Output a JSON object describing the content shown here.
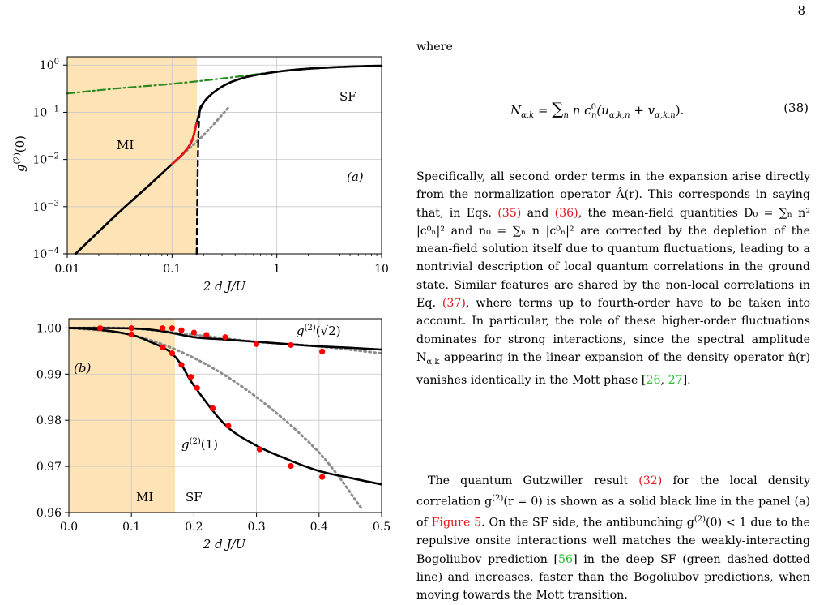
{
  "page": {
    "number": "8"
  },
  "figure": {
    "panel_a": {
      "y_axis_label": "g(2)(0)",
      "x_axis_label": "2 d J/U",
      "y_ticks": [
        "10^0",
        "10^-1",
        "10^-2",
        "10^-3",
        "10^-4"
      ],
      "x_ticks": [
        "0.01",
        "0.1",
        "1",
        "10"
      ],
      "label_MI": "MI",
      "label_SF": "SF",
      "panel_tag": "(a)"
    },
    "panel_b": {
      "x_axis_label": "2 d J/U",
      "y_ticks": [
        "1.00",
        "0.99",
        "0.98",
        "0.97",
        "0.96"
      ],
      "x_ticks": [
        "0.0",
        "0.1",
        "0.2",
        "0.3",
        "0.4",
        "0.5"
      ],
      "label_MI": "MI",
      "label_SF": "SF",
      "panel_tag": "(b)",
      "curve_label_sqrt2": "g(2)(√2)",
      "curve_label_1": "g(2)(1)"
    },
    "colors": {
      "mi_region": "#fde3b5",
      "gutzwiller": "#000000",
      "mean_field": "#000000",
      "bogoliubov": "#2a8a1f",
      "perturbative": "#8c8c8c",
      "data_points": "#ff0000",
      "red_segment": "#e4141c"
    }
  },
  "chart_data": [
    {
      "type": "line",
      "panel": "(a)",
      "xlabel": "2 d J/U",
      "ylabel": "g(2)(0)",
      "xscale": "log",
      "yscale": "log",
      "xlim": [
        0.01,
        10
      ],
      "ylim": [
        0.0001,
        1.5
      ],
      "grid": true,
      "mi_region": [
        0.01,
        0.172
      ],
      "series": [
        {
          "style": "solid-black",
          "x": [
            0.012,
            0.03,
            0.06,
            0.1,
            0.13,
            0.155,
            0.172,
            0.2,
            0.3,
            0.5,
            1,
            2,
            5,
            10
          ],
          "y": [
            0.0001,
            0.0007,
            0.0028,
            0.008,
            0.014,
            0.025,
            0.06,
            0.16,
            0.35,
            0.55,
            0.72,
            0.84,
            0.93,
            0.97
          ]
        },
        {
          "style": "dashed-black",
          "x": [
            0.172,
            0.18,
            0.2,
            0.3,
            0.5,
            1,
            2,
            5,
            10
          ],
          "y": [
            0.0001,
            0.05,
            0.16,
            0.35,
            0.55,
            0.72,
            0.84,
            0.93,
            0.97
          ]
        },
        {
          "style": "dashdot-green",
          "x": [
            0.01,
            0.03,
            0.1,
            0.3,
            1,
            3,
            10
          ],
          "y": [
            0.25,
            0.32,
            0.4,
            0.52,
            0.72,
            0.88,
            0.97
          ]
        },
        {
          "style": "dotted-gray",
          "x": [
            0.012,
            0.03,
            0.06,
            0.1,
            0.2,
            0.35
          ],
          "y": [
            0.0001,
            0.0007,
            0.0028,
            0.008,
            0.033,
            0.13
          ]
        },
        {
          "style": "solid-red",
          "x": [
            0.1,
            0.13,
            0.155,
            0.172
          ],
          "y": [
            0.008,
            0.014,
            0.025,
            0.06
          ]
        }
      ]
    },
    {
      "type": "line",
      "panel": "(b)",
      "xlabel": "2 d J/U",
      "xlim": [
        0.0,
        0.5
      ],
      "ylim": [
        0.96,
        1.002
      ],
      "grid": true,
      "mi_region": [
        0.0,
        0.172
      ],
      "series": [
        {
          "style": "solid-black",
          "x": [
            0.0,
            0.1,
            0.15,
            0.2,
            0.25,
            0.3,
            0.35,
            0.4,
            0.45,
            0.5
          ],
          "y": [
            1.0,
            0.9999,
            0.9993,
            0.998,
            0.9975,
            0.997,
            0.9965,
            0.996,
            0.9957,
            0.9953
          ]
        },
        {
          "style": "solid-black",
          "x": [
            0.0,
            0.05,
            0.1,
            0.13,
            0.16,
            0.18,
            0.2,
            0.25,
            0.3,
            0.35,
            0.4,
            0.45,
            0.5
          ],
          "y": [
            1.0,
            0.9996,
            0.9985,
            0.997,
            0.995,
            0.992,
            0.9875,
            0.979,
            0.9745,
            0.9715,
            0.969,
            0.9675,
            0.9661
          ]
        },
        {
          "style": "dotted-gray",
          "x": [
            0.0,
            0.1,
            0.2,
            0.3,
            0.4,
            0.5
          ],
          "y": [
            1.0,
            0.9999,
            0.9985,
            0.997,
            0.996,
            0.9945
          ]
        },
        {
          "style": "dotted-gray",
          "x": [
            0.0,
            0.1,
            0.2,
            0.3,
            0.4,
            0.47
          ],
          "y": [
            1.0,
            0.9985,
            0.9935,
            0.985,
            0.973,
            0.9605
          ]
        },
        {
          "style": "red-points",
          "x": [
            0.05,
            0.1,
            0.15,
            0.165,
            0.18,
            0.2,
            0.22,
            0.25,
            0.3,
            0.355,
            0.405
          ],
          "y": [
            0.99995,
            0.99995,
            0.99995,
            0.99995,
            0.9995,
            0.999,
            0.9985,
            0.998,
            0.9965,
            0.9963,
            0.9949
          ]
        },
        {
          "style": "red-points",
          "x": [
            0.1,
            0.15,
            0.165,
            0.18,
            0.195,
            0.205,
            0.23,
            0.255,
            0.305,
            0.355,
            0.405
          ],
          "y": [
            0.9986,
            0.9958,
            0.9945,
            0.992,
            0.9894,
            0.987,
            0.9826,
            0.9788,
            0.9737,
            0.9701,
            0.9677
          ]
        }
      ]
    }
  ],
  "text": {
    "where": "where",
    "equation": {
      "lhs": "N",
      "lhs_sub": "α,k",
      "eq": " = ",
      "sum": "∑",
      "sum_sub": "n",
      "body": " n c",
      "body_sup": "0",
      "body_sub": "n",
      "paren": "(u",
      "u_sub": "α,k,n",
      "plus": " + v",
      "v_sub": "α,k,n",
      "close": ").",
      "number": "(38)"
    },
    "para1": {
      "s1": "Specifically, all second order terms in the expansion arise directly from the normalization operator Â(r). This corresponds in saying that, in Eqs. ",
      "ref35": "(35)",
      "s2": " and ",
      "ref36": "(36)",
      "s3": ", the mean-field quantities D₀ = ∑ₙ n² |c⁰ₙ|² and n₀ = ∑ₙ n |c⁰ₙ|² are corrected by the depletion of the mean-field solution itself due to quantum fluctuations, leading to a nontrivial description of local quantum correlations in the ground state. Similar features are shared by the non-local correlations in Eq. ",
      "ref37": "(37)",
      "s4": ", where terms up to fourth-order have to be taken into account. In particular, the role of these higher-order fluctuations dominates for strong interactions, since the spectral amplitude N",
      "s4_sub": "α,k",
      "s5": " appearing in the linear expansion of the density operator n̂(r) vanishes identically in the Mott phase [",
      "ref26": "26",
      "s6": ", ",
      "ref27": "27",
      "s7": "]."
    },
    "para2": {
      "s1": "The quantum Gutzwiller result ",
      "ref32": "(32)",
      "s2": " for the local density correlation g",
      "s2_sup": "(2)",
      "s3": "(r = 0) is shown as a solid black line in the panel (a) of ",
      "reffig": "Figure 5",
      "s4": ". On the SF side, the antibunching g",
      "s4_sup": "(2)",
      "s5": "(0) < 1 due to the repulsive onsite interactions well matches the weakly-interacting Bogoliubov prediction [",
      "ref56": "56",
      "s6": "] in the deep SF (green dashed-dotted line) and increases, faster than the Bogoliubov predictions, when moving towards the Mott transition."
    }
  }
}
